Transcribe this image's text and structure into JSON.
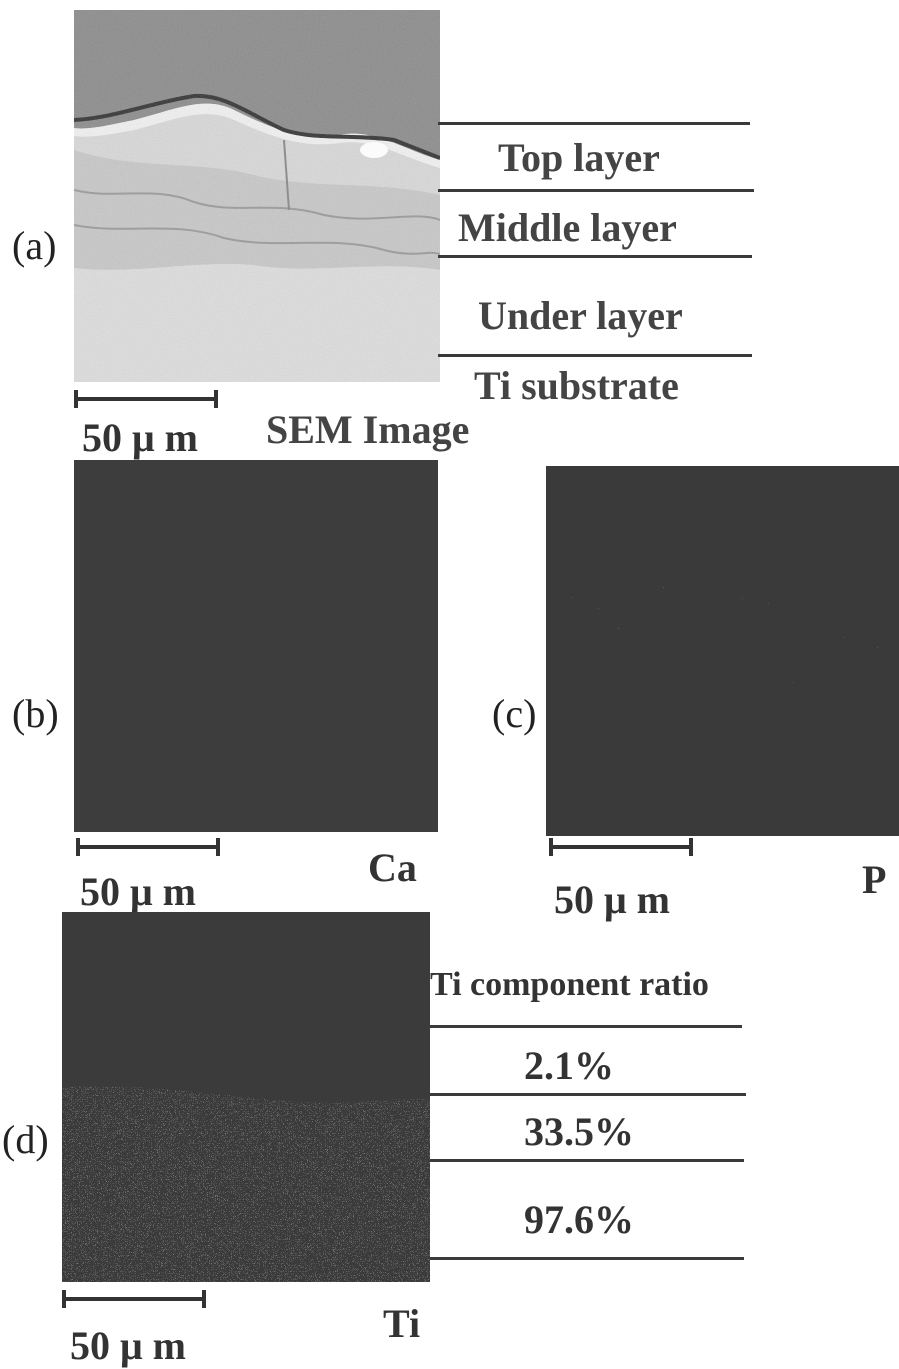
{
  "panels": {
    "a": {
      "label": "(a)",
      "caption": "SEM Image",
      "scale": "50 μ m"
    },
    "b": {
      "label": "(b)",
      "element": "Ca",
      "scale": "50 μ m"
    },
    "c": {
      "label": "(c)",
      "element": "P",
      "scale": "50 μ m"
    },
    "d": {
      "label": "(d)",
      "element": "Ti",
      "scale": "50 μ m"
    }
  },
  "layers": [
    "Top layer",
    "Middle layer",
    "Under layer",
    "Ti substrate"
  ],
  "ti_ratio": {
    "title": "Ti component ratio",
    "values": [
      "2.1%",
      "33.5%",
      "97.6%"
    ]
  },
  "colors": {
    "map_background": "#3d3d3d",
    "sem_light": "#d8d8d8",
    "sem_dark": "#8a8a8a",
    "lines": "#3a3a3a"
  }
}
